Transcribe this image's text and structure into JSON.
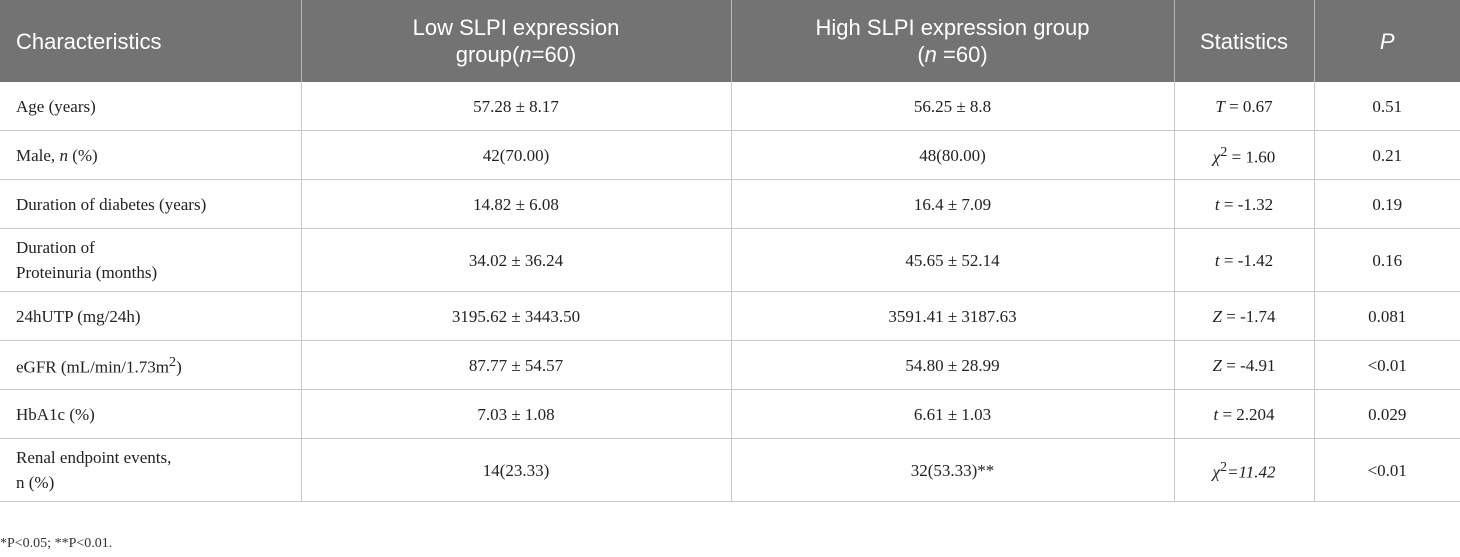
{
  "header": {
    "characteristics": "Characteristics",
    "low_group_line1": "Low SLPI expression",
    "low_group_pre": "group(",
    "low_group_n": "n",
    "low_group_post": "=60)",
    "high_group_line1": "High SLPI expression group",
    "high_group_pre": "(",
    "high_group_n": "n",
    "high_group_post": " =60)",
    "statistics": "Statistics",
    "p": "P"
  },
  "rows": [
    {
      "characteristic": "Age (years)",
      "low": "57.28 ± 8.17",
      "high": "56.25 ± 8.8",
      "stat_symbol": "T",
      "stat_value": " = 0.67",
      "p": "0.51"
    },
    {
      "char_pre": "Male, ",
      "char_italic": "n",
      "char_post": " (%)",
      "low": "42(70.00)",
      "high": "48(80.00)",
      "stat_symbol": "χ",
      "stat_sup": "2",
      "stat_value": " = 1.60",
      "p": "0.21"
    },
    {
      "characteristic": "Duration of diabetes (years)",
      "low": "14.82 ± 6.08",
      "high": "16.4 ± 7.09",
      "stat_symbol": "t",
      "stat_value": " = -1.32",
      "p": "0.19"
    },
    {
      "char_line1": "Duration of",
      "char_line2": "Proteinuria (months)",
      "low": "34.02 ± 36.24",
      "high": "45.65 ± 52.14",
      "stat_symbol": "t",
      "stat_value": " = -1.42",
      "p": "0.16"
    },
    {
      "characteristic": "24hUTP (mg/24h)",
      "low": "3195.62 ± 3443.50",
      "high": "3591.41 ± 3187.63",
      "stat_symbol": "Z",
      "stat_value": " = -1.74",
      "p": "0.081"
    },
    {
      "char_pre": "eGFR (mL/min/1.73m",
      "char_sup": "2",
      "char_post": ")",
      "low": "87.77 ± 54.57",
      "high": "54.80 ± 28.99",
      "stat_symbol": "Z",
      "stat_value": " = -4.91",
      "p": "<0.01"
    },
    {
      "characteristic": "HbA1c (%)",
      "low": "7.03 ± 1.08",
      "high": "6.61 ± 1.03",
      "stat_symbol": "t",
      "stat_value": " = 2.204",
      "p": "0.029"
    },
    {
      "char_line1": "Renal endpoint events,",
      "char_line2": "n (%)",
      "low": "14(23.33)",
      "high": "32(53.33)**",
      "stat_symbol": "χ",
      "stat_sup": "2",
      "stat_value": "=11.42",
      "p": "<0.01"
    }
  ],
  "footnote": "*P<0.05; **P<0.01."
}
